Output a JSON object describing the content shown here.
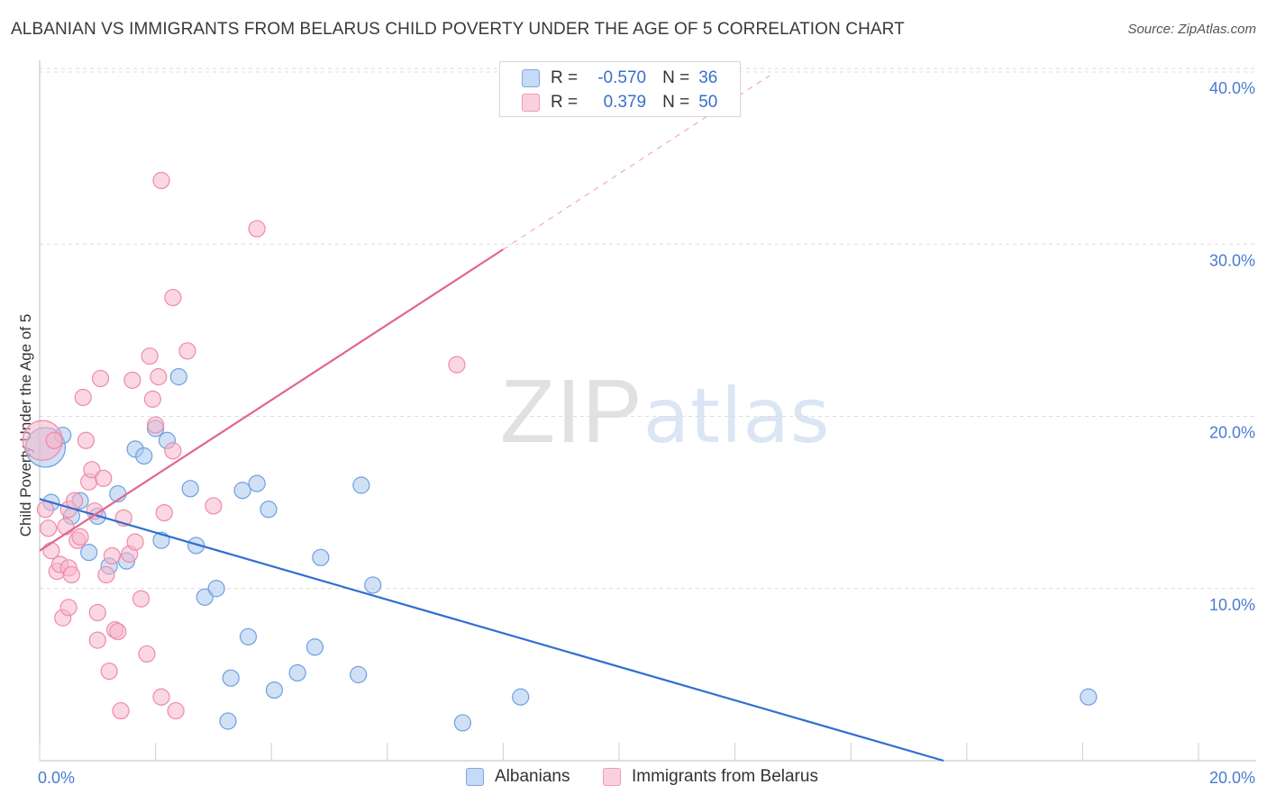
{
  "title": "ALBANIAN VS IMMIGRANTS FROM BELARUS CHILD POVERTY UNDER THE AGE OF 5 CORRELATION CHART",
  "source": "Source: ZipAtlas.com",
  "watermark": {
    "zip": "ZIP",
    "atlas": "atlas"
  },
  "stats": {
    "r_label": "R =",
    "n_label": "N =",
    "rows": [
      {
        "r": "-0.570",
        "n": "36",
        "color": "#aac8ef"
      },
      {
        "r": "0.379",
        "n": "50",
        "color": "#f6b7ca"
      }
    ]
  },
  "legend": [
    {
      "label": "Albanians",
      "color": "#aac8ef"
    },
    {
      "label": "Immigrants from Belarus",
      "color": "#f6b7ca"
    }
  ],
  "chart_data": {
    "type": "scatter",
    "ylabel": "Child Poverty Under the Age of 5",
    "xlabel": "",
    "xlim": [
      0,
      20
    ],
    "ylim": [
      0,
      40
    ],
    "x_tick_labels": [
      "0.0%",
      "20.0%"
    ],
    "y_ticks": [
      10,
      20,
      30,
      40
    ],
    "y_tick_labels": [
      "10.0%",
      "20.0%",
      "30.0%",
      "40.0%"
    ],
    "grid": true,
    "series": [
      {
        "name": "Albanians",
        "color": "#aac8ef",
        "stroke": "#6e9fe0",
        "line_color": "#2f6fd1",
        "trend": {
          "x": [
            0,
            15.6
          ],
          "y": [
            15.2,
            0
          ]
        },
        "points": [
          {
            "x": 0.1,
            "y": 18.2,
            "big": true
          },
          {
            "x": 0.2,
            "y": 15.0
          },
          {
            "x": 0.4,
            "y": 18.9
          },
          {
            "x": 0.55,
            "y": 14.2
          },
          {
            "x": 0.7,
            "y": 15.1
          },
          {
            "x": 0.85,
            "y": 12.1
          },
          {
            "x": 1.0,
            "y": 14.2
          },
          {
            "x": 1.2,
            "y": 11.3
          },
          {
            "x": 1.35,
            "y": 15.5
          },
          {
            "x": 1.5,
            "y": 11.6
          },
          {
            "x": 1.65,
            "y": 18.1
          },
          {
            "x": 1.8,
            "y": 17.7
          },
          {
            "x": 2.0,
            "y": 19.3
          },
          {
            "x": 2.1,
            "y": 12.8
          },
          {
            "x": 2.2,
            "y": 18.6
          },
          {
            "x": 2.4,
            "y": 22.3
          },
          {
            "x": 2.6,
            "y": 15.8
          },
          {
            "x": 2.7,
            "y": 12.5
          },
          {
            "x": 2.85,
            "y": 9.5
          },
          {
            "x": 3.05,
            "y": 10.0
          },
          {
            "x": 3.25,
            "y": 2.3
          },
          {
            "x": 3.3,
            "y": 4.8
          },
          {
            "x": 3.5,
            "y": 15.7
          },
          {
            "x": 3.6,
            "y": 7.2
          },
          {
            "x": 3.75,
            "y": 16.1
          },
          {
            "x": 3.95,
            "y": 14.6
          },
          {
            "x": 4.05,
            "y": 4.1
          },
          {
            "x": 4.45,
            "y": 5.1
          },
          {
            "x": 4.75,
            "y": 6.6
          },
          {
            "x": 4.85,
            "y": 11.8
          },
          {
            "x": 5.5,
            "y": 5.0
          },
          {
            "x": 5.55,
            "y": 16.0
          },
          {
            "x": 5.75,
            "y": 10.2
          },
          {
            "x": 7.3,
            "y": 2.2
          },
          {
            "x": 8.3,
            "y": 3.7
          },
          {
            "x": 18.1,
            "y": 3.7
          }
        ]
      },
      {
        "name": "Immigrants from Belarus",
        "color": "#f6b7ca",
        "stroke": "#ef8aa8",
        "line_color": "#e0668f",
        "trend": {
          "x": [
            0,
            8.0
          ],
          "y": [
            12.2,
            29.7
          ]
        },
        "trend_dashed": {
          "x": [
            8.0,
            12.6
          ],
          "y": [
            29.7,
            39.8
          ]
        },
        "points": [
          {
            "x": 0.05,
            "y": 18.6,
            "big": true
          },
          {
            "x": 0.1,
            "y": 14.6
          },
          {
            "x": 0.15,
            "y": 13.5
          },
          {
            "x": 0.2,
            "y": 12.2
          },
          {
            "x": 0.25,
            "y": 18.6
          },
          {
            "x": 0.3,
            "y": 11.0
          },
          {
            "x": 0.35,
            "y": 11.4
          },
          {
            "x": 0.4,
            "y": 8.3
          },
          {
            "x": 0.45,
            "y": 13.6
          },
          {
            "x": 0.5,
            "y": 8.9
          },
          {
            "x": 0.5,
            "y": 11.2
          },
          {
            "x": 0.5,
            "y": 14.6
          },
          {
            "x": 0.55,
            "y": 10.8
          },
          {
            "x": 0.6,
            "y": 15.1
          },
          {
            "x": 0.65,
            "y": 12.8
          },
          {
            "x": 0.7,
            "y": 13.0
          },
          {
            "x": 0.75,
            "y": 21.1
          },
          {
            "x": 0.8,
            "y": 18.6
          },
          {
            "x": 0.85,
            "y": 16.2
          },
          {
            "x": 0.9,
            "y": 16.9
          },
          {
            "x": 0.95,
            "y": 14.5
          },
          {
            "x": 1.0,
            "y": 7.0
          },
          {
            "x": 1.0,
            "y": 8.6
          },
          {
            "x": 1.05,
            "y": 22.2
          },
          {
            "x": 1.1,
            "y": 16.4
          },
          {
            "x": 1.15,
            "y": 10.8
          },
          {
            "x": 1.2,
            "y": 5.2
          },
          {
            "x": 1.25,
            "y": 11.9
          },
          {
            "x": 1.3,
            "y": 7.6
          },
          {
            "x": 1.35,
            "y": 7.5
          },
          {
            "x": 1.4,
            "y": 2.9
          },
          {
            "x": 1.45,
            "y": 14.1
          },
          {
            "x": 1.55,
            "y": 12.0
          },
          {
            "x": 1.6,
            "y": 22.1
          },
          {
            "x": 1.65,
            "y": 12.7
          },
          {
            "x": 1.75,
            "y": 9.4
          },
          {
            "x": 1.85,
            "y": 6.2
          },
          {
            "x": 1.9,
            "y": 23.5
          },
          {
            "x": 1.95,
            "y": 21.0
          },
          {
            "x": 2.0,
            "y": 19.5
          },
          {
            "x": 2.05,
            "y": 22.3
          },
          {
            "x": 2.1,
            "y": 3.7
          },
          {
            "x": 2.15,
            "y": 14.4
          },
          {
            "x": 2.3,
            "y": 18.0
          },
          {
            "x": 2.35,
            "y": 2.9
          },
          {
            "x": 2.1,
            "y": 33.7
          },
          {
            "x": 2.3,
            "y": 26.9
          },
          {
            "x": 2.55,
            "y": 23.8
          },
          {
            "x": 3.0,
            "y": 14.8
          },
          {
            "x": 3.75,
            "y": 30.9
          },
          {
            "x": 7.2,
            "y": 23.0
          }
        ]
      }
    ]
  }
}
